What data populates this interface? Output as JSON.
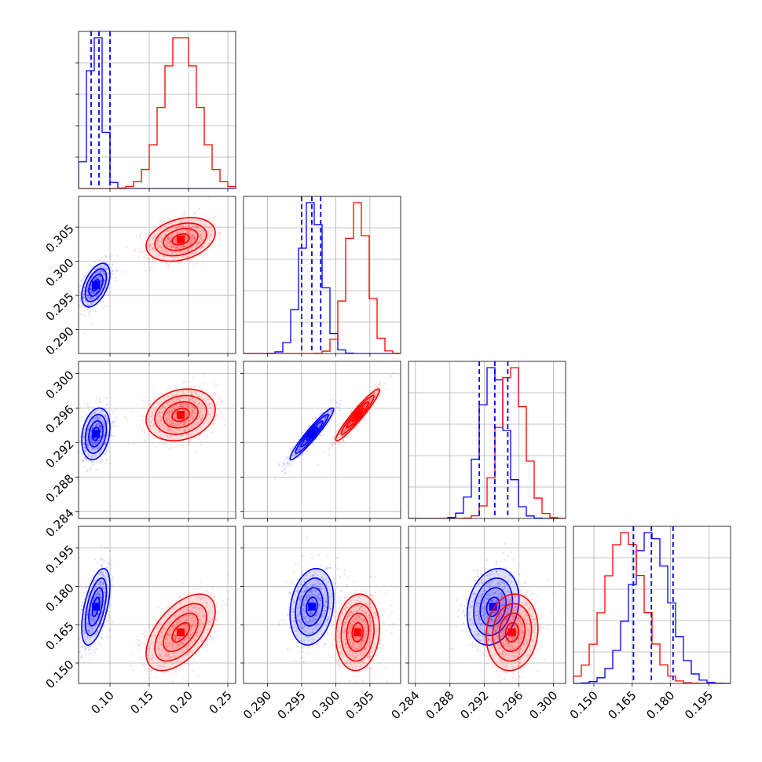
{
  "figure": {
    "type": "corner-plot",
    "series_colors": {
      "blue": "#0000ff",
      "red": "#ff0000"
    },
    "grid": true
  },
  "chart_data": {
    "type": "corner",
    "parameters": [
      {
        "id": "p1",
        "range": [
          0.06,
          0.26
        ],
        "ticks": [
          "0.10",
          "0.15",
          "0.20",
          "0.25"
        ]
      },
      {
        "id": "p2",
        "range": [
          0.2865,
          0.3095
        ],
        "ticks": [
          "0.290",
          "0.295",
          "0.300",
          "0.305"
        ]
      },
      {
        "id": "p3",
        "range": [
          0.2832,
          0.3014
        ],
        "ticks": [
          "0.284",
          "0.288",
          "0.292",
          "0.296",
          "0.300"
        ]
      },
      {
        "id": "p4",
        "range": [
          0.142,
          0.2035
        ],
        "ticks": [
          "0.150",
          "0.165",
          "0.180",
          "0.195"
        ]
      }
    ],
    "series": [
      {
        "color": "#0000ff",
        "means": [
          0.082,
          0.2965,
          0.293,
          0.172
        ],
        "sigmas": [
          0.009,
          0.0016,
          0.0015,
          0.0075
        ],
        "quantiles": [
          [
            0.076,
            0.086,
            0.1
          ],
          [
            0.295,
            0.2965,
            0.2978
          ],
          [
            0.2914,
            0.2932,
            0.2947
          ],
          [
            0.1655,
            0.1725,
            0.181
          ]
        ],
        "correlations": [
          [
            0,
            1,
            0.5
          ],
          [
            0,
            2,
            0.25
          ],
          [
            0,
            3,
            0.55
          ],
          [
            1,
            2,
            0.95
          ],
          [
            1,
            3,
            0.2
          ],
          [
            2,
            3,
            0.2
          ]
        ]
      },
      {
        "color": "#ff0000",
        "means": [
          0.19,
          0.3032,
          0.2952,
          0.162
        ],
        "sigmas": [
          0.022,
          0.0016,
          0.0015,
          0.0075
        ],
        "correlations": [
          [
            0,
            1,
            0.3
          ],
          [
            0,
            2,
            0.2
          ],
          [
            0,
            3,
            0.55
          ],
          [
            1,
            2,
            0.95
          ],
          [
            1,
            3,
            0.1
          ],
          [
            2,
            3,
            0.1
          ]
        ]
      }
    ]
  }
}
